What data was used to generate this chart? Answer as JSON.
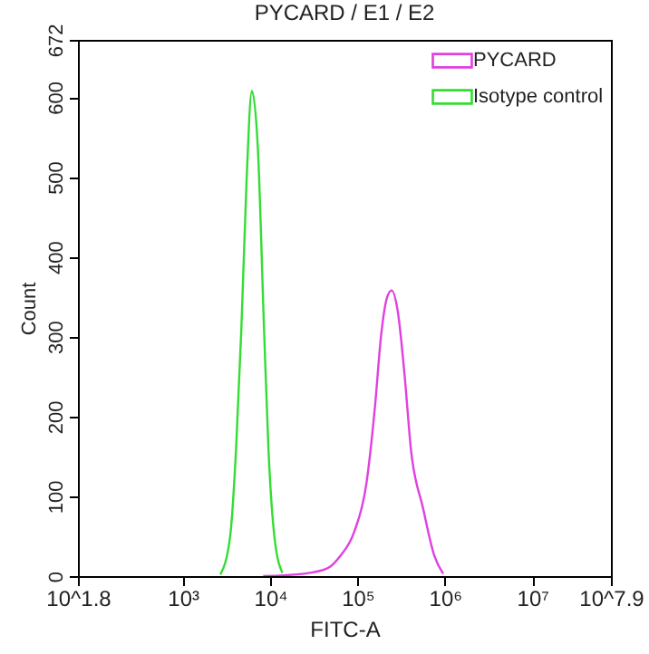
{
  "chart_data": {
    "type": "line",
    "title": "PYCARD / E1 / E2",
    "xlabel": "FITC-A",
    "ylabel": "Count",
    "log": "x",
    "grid": false,
    "legend": "top right",
    "marker": "none",
    "line_style": "solid",
    "xlim": [
      63.0957,
      79432823
    ],
    "ylim": [
      0,
      672
    ],
    "xticks": [
      {
        "value": 63.0957,
        "label": "10^1.8"
      },
      {
        "value": 1000,
        "label": "10³"
      },
      {
        "value": 10000,
        "label": "10⁴"
      },
      {
        "value": 100000,
        "label": "10⁵"
      },
      {
        "value": 1000000,
        "label": "10⁶"
      },
      {
        "value": 10000000,
        "label": "10⁷"
      },
      {
        "value": 79432823,
        "label": "10^7.9"
      }
    ],
    "yticks": [
      0,
      100,
      200,
      300,
      400,
      500,
      600,
      672
    ],
    "series": [
      {
        "name": "PYCARD",
        "color": "#e040e0",
        "x": [
          8318,
          24550,
          45710,
          63100,
          91200,
          125900,
          158500,
          186200,
          218800,
          245500,
          288400,
          346700,
          407400,
          562300,
          758600,
          955000
        ],
        "values": [
          0,
          3,
          10,
          25,
          55,
          115,
          213,
          302,
          350,
          358,
          332,
          250,
          160,
          85,
          25,
          3
        ]
      },
      {
        "name": "Isotype control",
        "color": "#33dd33",
        "x": [
          2692,
          3467,
          4074,
          4677,
          5370,
          6166,
          7244,
          8511,
          9550,
          11220,
          13800
        ],
        "values": [
          2,
          48,
          160,
          309,
          496,
          608,
          534,
          309,
          160,
          48,
          4
        ]
      }
    ]
  }
}
